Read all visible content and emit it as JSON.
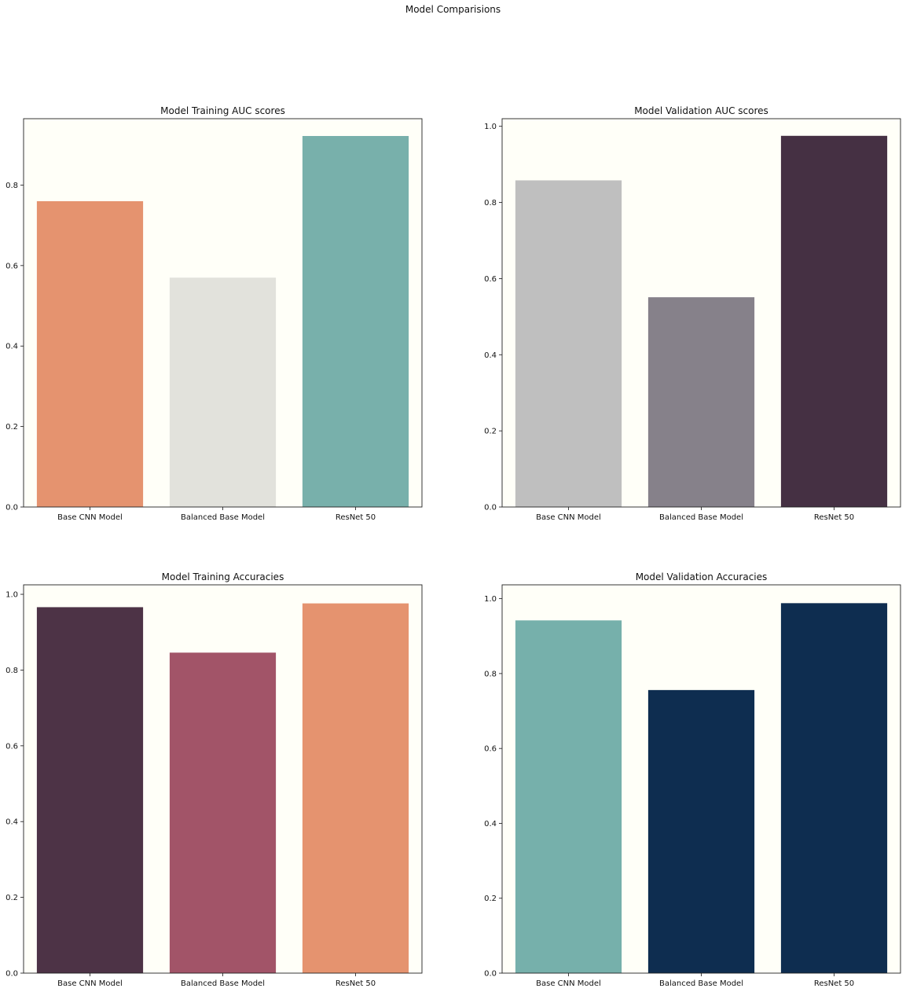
{
  "figure": {
    "suptitle": "Model Comparisions",
    "background": "#ffffff",
    "axes_face": "#fffff8"
  },
  "chart_data": [
    {
      "type": "bar",
      "title": "Model Training AUC scores",
      "xlabel": "",
      "ylabel": "",
      "categories": [
        "Base CNN Model",
        "Balanced Base Model",
        "ResNet 50"
      ],
      "values": [
        0.76,
        0.57,
        0.922
      ],
      "ylim": [
        0,
        0.965
      ],
      "yticks": [
        0.0,
        0.2,
        0.4,
        0.6,
        0.8
      ],
      "colors": [
        "#e5936f",
        "#e2e2dc",
        "#78b0ab"
      ],
      "grid": false,
      "legend": "none"
    },
    {
      "type": "bar",
      "title": "Model Validation AUC scores",
      "xlabel": "",
      "ylabel": "",
      "categories": [
        "Base CNN Model",
        "Balanced Base Model",
        "ResNet 50"
      ],
      "values": [
        0.858,
        0.551,
        0.975
      ],
      "ylim": [
        0,
        1.02
      ],
      "yticks": [
        0.0,
        0.2,
        0.4,
        0.6,
        0.8,
        1.0
      ],
      "colors": [
        "#bfbfbf",
        "#86818a",
        "#453043"
      ],
      "grid": false,
      "legend": "none"
    },
    {
      "type": "bar",
      "title": "Model Training Accuracies",
      "xlabel": "",
      "ylabel": "",
      "categories": [
        "Base CNN Model",
        "Balanced Base Model",
        "ResNet 50"
      ],
      "values": [
        0.966,
        0.846,
        0.976
      ],
      "ylim": [
        0,
        1.025
      ],
      "yticks": [
        0.0,
        0.2,
        0.4,
        0.6,
        0.8,
        1.0
      ],
      "colors": [
        "#4d3346",
        "#a25468",
        "#e5936f"
      ],
      "grid": false,
      "legend": "none"
    },
    {
      "type": "bar",
      "title": "Model Validation Accuracies",
      "xlabel": "",
      "ylabel": "",
      "categories": [
        "Base CNN Model",
        "Balanced Base Model",
        "ResNet 50"
      ],
      "values": [
        0.942,
        0.756,
        0.988
      ],
      "ylim": [
        0,
        1.037
      ],
      "yticks": [
        0.0,
        0.2,
        0.4,
        0.6,
        0.8,
        1.0
      ],
      "colors": [
        "#76b0ab",
        "#0e2d50",
        "#0e2d50"
      ],
      "grid": false,
      "legend": "none"
    }
  ]
}
